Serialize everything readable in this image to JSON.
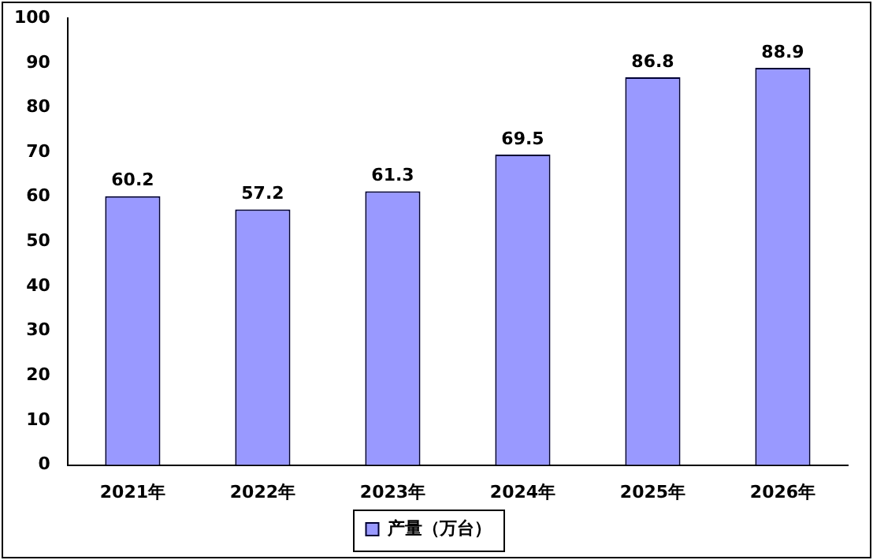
{
  "chart_data": {
    "type": "bar",
    "categories": [
      "2021年",
      "2022年",
      "2023年",
      "2024年",
      "2025年",
      "2026年"
    ],
    "series": [
      {
        "name": "产量（万台）",
        "color": "#9999ff",
        "values": [
          60.2,
          57.2,
          61.3,
          69.5,
          86.8,
          88.9
        ]
      }
    ],
    "ylim": [
      0,
      100
    ],
    "yticks": [
      0,
      10,
      20,
      30,
      40,
      50,
      60,
      70,
      80,
      90,
      100
    ],
    "data_labels": true,
    "legend": "bottom",
    "grid": false
  }
}
